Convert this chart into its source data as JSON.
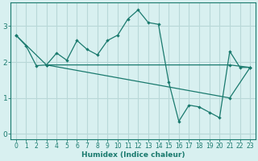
{
  "line1_x": [
    0,
    1,
    2,
    3,
    4,
    5,
    6,
    7,
    8,
    9,
    10,
    11,
    12,
    13,
    14,
    15,
    16,
    17,
    18,
    19,
    20,
    21,
    22,
    23
  ],
  "line1_y": [
    2.75,
    2.45,
    1.9,
    1.92,
    2.25,
    2.05,
    2.6,
    2.35,
    2.2,
    2.6,
    2.75,
    3.2,
    3.45,
    3.1,
    3.05,
    1.45,
    0.35,
    0.8,
    0.75,
    0.6,
    0.45,
    2.3,
    1.85,
    1.85
  ],
  "line2_x": [
    3,
    21,
    23
  ],
  "line2_y": [
    1.92,
    1.92,
    1.85
  ],
  "line3_x": [
    0,
    3,
    21,
    23
  ],
  "line3_y": [
    2.75,
    1.92,
    1.0,
    1.85
  ],
  "color": "#1a7a6e",
  "bg_color": "#d8f0f0",
  "grid_color": "#b8d8d8",
  "xlabel": "Humidex (Indice chaleur)",
  "xlim": [
    -0.5,
    23.5
  ],
  "ylim": [
    -0.15,
    3.65
  ],
  "yticks": [
    0,
    1,
    2,
    3
  ],
  "xticks": [
    0,
    1,
    2,
    3,
    4,
    5,
    6,
    7,
    8,
    9,
    10,
    11,
    12,
    13,
    14,
    15,
    16,
    17,
    18,
    19,
    20,
    21,
    22,
    23
  ]
}
